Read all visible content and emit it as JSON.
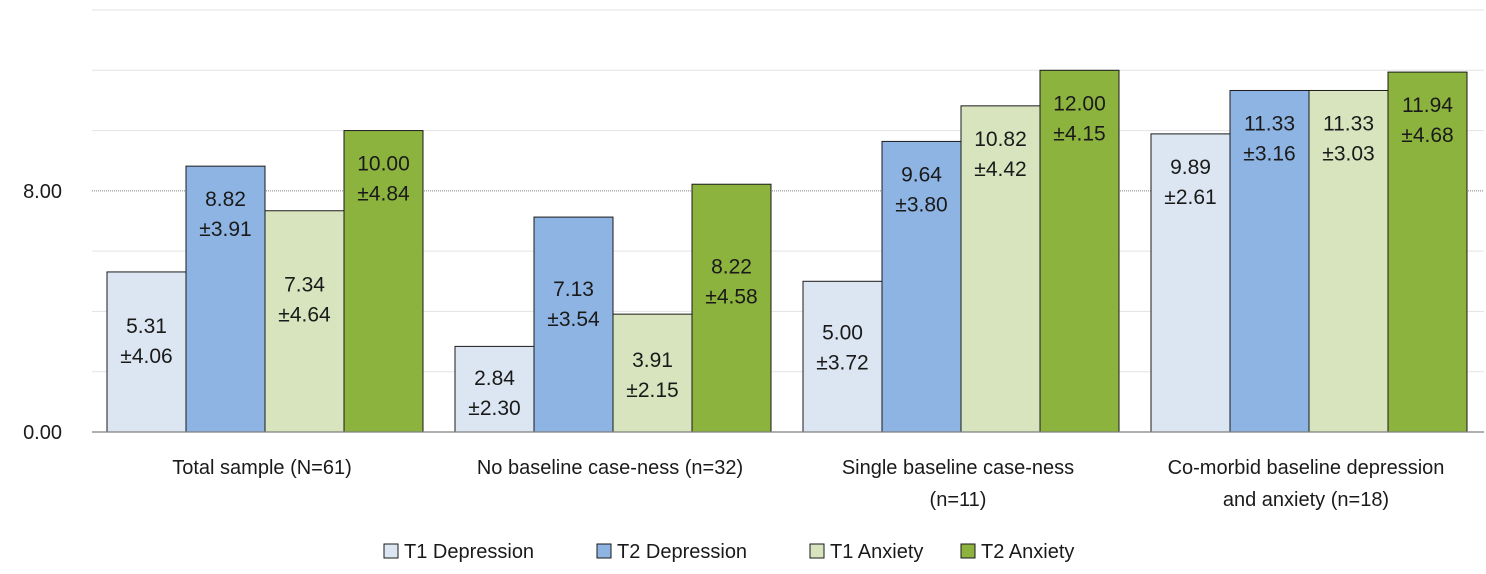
{
  "chart_data": {
    "type": "bar",
    "title": "",
    "xlabel": "",
    "ylabel": "",
    "ylim": [
      0,
      14
    ],
    "y_ticks": [
      {
        "value": 0,
        "label": "0.00"
      },
      {
        "value": 8,
        "label": "8.00"
      }
    ],
    "grid": true,
    "legend_position": "bottom",
    "categories": [
      [
        "Total sample (N=61)"
      ],
      [
        "No baseline case-ness  (n=32)"
      ],
      [
        "Single baseline case-ness",
        "(n=11)"
      ],
      [
        "Co-morbid baseline depression",
        "and anxiety (n=18)"
      ]
    ],
    "series": [
      {
        "name": "T1 Depression",
        "color": "#dce6f2",
        "values": [
          5.31,
          2.84,
          5.0,
          9.89
        ],
        "sd_labels": [
          "±4.06",
          "±2.30",
          "±3.72",
          "±2.61"
        ],
        "value_labels": [
          "5.31",
          "2.84",
          "5.00",
          "9.89"
        ]
      },
      {
        "name": "T2 Depression",
        "color": "#8eb4e3",
        "values": [
          8.82,
          7.13,
          9.64,
          11.33
        ],
        "sd_labels": [
          "±3.91",
          "±3.54",
          "±3.80",
          "±3.16"
        ],
        "value_labels": [
          "8.82",
          "7.13",
          "9.64",
          "11.33"
        ]
      },
      {
        "name": "T1 Anxiety",
        "color": "#d7e4bd",
        "values": [
          7.34,
          3.91,
          10.82,
          11.33
        ],
        "sd_labels": [
          "±4.64",
          "±2.15",
          "±4.42",
          "±3.03"
        ],
        "value_labels": [
          "7.34",
          "3.91",
          "10.82",
          "11.33"
        ]
      },
      {
        "name": "T2 Anxiety",
        "color": "#8db33f",
        "values": [
          10.0,
          8.22,
          12.0,
          11.94
        ],
        "sd_labels": [
          "±4.84",
          "±4.58",
          "±4.15",
          "±4.68"
        ],
        "value_labels": [
          "10.00",
          "8.22",
          "12.00",
          "11.94"
        ]
      }
    ]
  }
}
